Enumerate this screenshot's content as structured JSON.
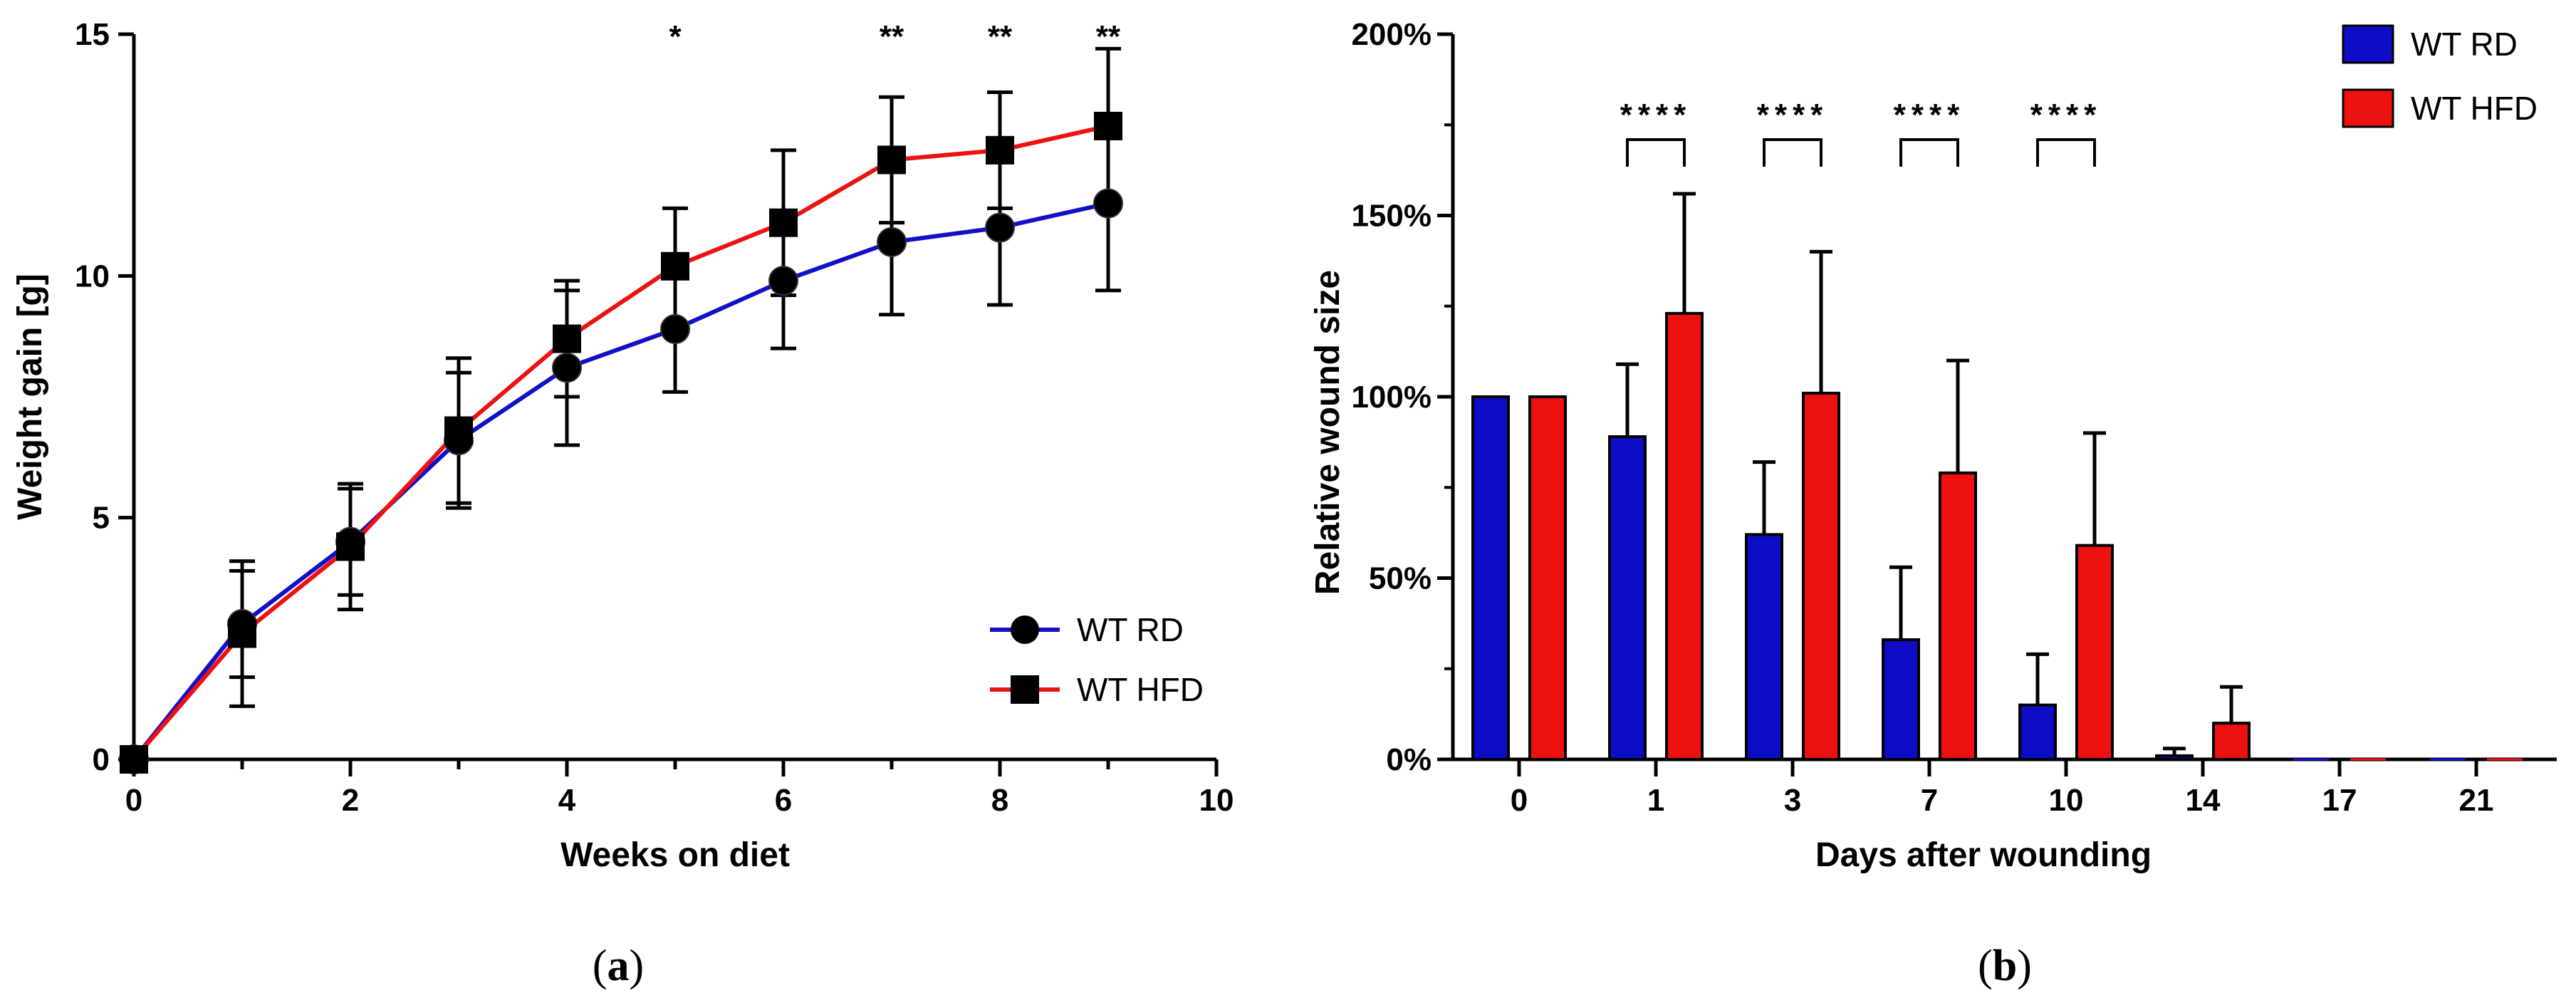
{
  "chart_data": [
    {
      "type": "line",
      "panel_label": "a",
      "title": "",
      "xlabel": "Weeks on diet",
      "ylabel": "Weight gain [g]",
      "xlim": [
        0,
        10
      ],
      "ylim": [
        0,
        15
      ],
      "x_ticks": [
        0,
        2,
        4,
        6,
        8,
        10
      ],
      "y_ticks": [
        0,
        5,
        10,
        15
      ],
      "series": [
        {
          "name": "WT RD",
          "color": "#1010c8",
          "marker": "circle",
          "x": [
            0,
            1,
            2,
            3,
            4,
            5,
            6,
            7,
            8,
            9
          ],
          "values": [
            0,
            2.8,
            4.5,
            6.6,
            8.1,
            8.9,
            9.9,
            10.7,
            11.0,
            11.5
          ],
          "error": [
            0,
            1.1,
            1.1,
            1.4,
            1.6,
            1.3,
            1.4,
            1.5,
            1.6,
            1.8
          ]
        },
        {
          "name": "WT HFD",
          "color": "#ee1111",
          "marker": "square",
          "x": [
            0,
            1,
            2,
            3,
            4,
            5,
            6,
            7,
            8,
            9
          ],
          "values": [
            0,
            2.6,
            4.4,
            6.8,
            8.7,
            10.2,
            11.1,
            12.4,
            12.6,
            13.1
          ],
          "error": [
            0,
            1.5,
            1.3,
            1.5,
            1.2,
            1.2,
            1.5,
            1.3,
            1.2,
            1.6
          ]
        }
      ],
      "annotations": [
        {
          "x": 5,
          "text": "*"
        },
        {
          "x": 7,
          "text": "**"
        },
        {
          "x": 8,
          "text": "**"
        },
        {
          "x": 9,
          "text": "**"
        }
      ],
      "legend_position": "bottom-right"
    },
    {
      "type": "bar",
      "panel_label": "b",
      "title": "",
      "xlabel": "Days after wounding",
      "ylabel": "Relative wound size",
      "ylim": [
        0,
        200
      ],
      "y_ticks": [
        0,
        50,
        100,
        150,
        200
      ],
      "y_tick_labels": [
        "0%",
        "50%",
        "100%",
        "150%",
        "200%"
      ],
      "categories": [
        "0",
        "1",
        "3",
        "7",
        "10",
        "14",
        "17",
        "21"
      ],
      "series": [
        {
          "name": "WT RD",
          "color": "#0d0dc8",
          "values": [
            100,
            89,
            62,
            33,
            15,
            1,
            0,
            0
          ],
          "error": [
            0,
            20,
            20,
            20,
            14,
            2,
            0,
            0
          ]
        },
        {
          "name": "WT HFD",
          "color": "#ee1111",
          "values": [
            100,
            123,
            101,
            79,
            59,
            10,
            0,
            0
          ],
          "error": [
            0,
            33,
            39,
            31,
            31,
            10,
            0,
            0
          ]
        }
      ],
      "annotations": [
        {
          "category": "1",
          "text": "****"
        },
        {
          "category": "3",
          "text": "****"
        },
        {
          "category": "7",
          "text": "****"
        },
        {
          "category": "10",
          "text": "****"
        }
      ],
      "legend_position": "top-right"
    }
  ]
}
